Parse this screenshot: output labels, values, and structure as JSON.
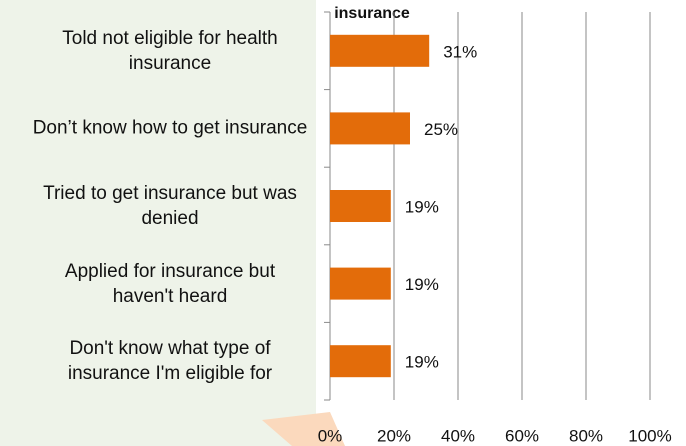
{
  "chart_data": {
    "type": "hbar",
    "title": "insurance",
    "categories": [
      "Told not eligible for health insurance",
      "Don’t know how to get insurance",
      "Tried to get insurance but was denied",
      "Applied for insurance but haven't heard",
      "Don't know what type of insurance I'm eligible for"
    ],
    "values": [
      31,
      25,
      19,
      19,
      19
    ],
    "value_labels": [
      "31%",
      "25%",
      "19%",
      "19%",
      "19%"
    ],
    "color": "#e36c0a",
    "xlim": [
      0,
      100
    ],
    "xticks": [
      {
        "value": 0,
        "label": "0%"
      },
      {
        "value": 20,
        "label": "20%"
      },
      {
        "value": 40,
        "label": "40%"
      },
      {
        "value": 60,
        "label": "60%"
      },
      {
        "value": 80,
        "label": "80%"
      },
      {
        "value": 100,
        "label": "100%"
      }
    ],
    "grid": true
  }
}
